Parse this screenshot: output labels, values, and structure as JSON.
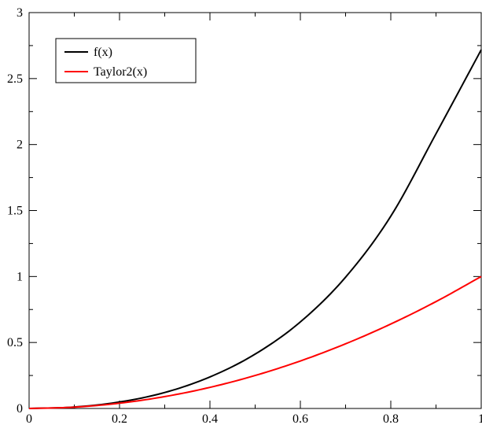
{
  "chart_data": {
    "type": "line",
    "xlim": [
      0,
      1
    ],
    "ylim": [
      0,
      3
    ],
    "x_ticks": [
      0,
      0.2,
      0.4,
      0.6,
      0.8,
      1
    ],
    "x_tick_labels": [
      "0",
      "0.2",
      "0.4",
      "0.6",
      "0.8",
      "1"
    ],
    "y_ticks": [
      0,
      0.5,
      1,
      1.5,
      2,
      2.5,
      3
    ],
    "y_tick_labels": [
      "0",
      "0.5",
      "1",
      "1.5",
      "2",
      "2.5",
      "3"
    ],
    "grid": false,
    "legend_position": "top-left",
    "x": [
      0,
      0.1,
      0.2,
      0.3,
      0.4,
      0.5,
      0.6,
      0.7,
      0.8,
      0.9,
      1.0
    ],
    "series": [
      {
        "name": "f(x)",
        "color": "#000000",
        "values": [
          0,
          0.011,
          0.049,
          0.121,
          0.239,
          0.412,
          0.656,
          0.995,
          1.457,
          2.082,
          2.718
        ]
      },
      {
        "name": "Taylor2(x)",
        "color": "#ff0000",
        "values": [
          0,
          0.01,
          0.04,
          0.09,
          0.16,
          0.25,
          0.36,
          0.49,
          0.64,
          0.81,
          1.0
        ]
      }
    ]
  }
}
